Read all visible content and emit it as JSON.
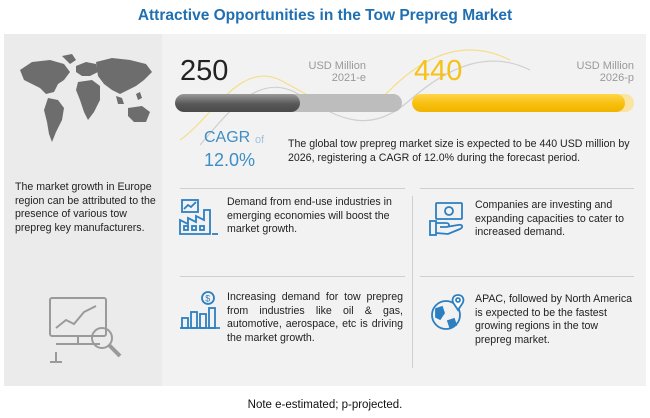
{
  "title": "Attractive Opportunities in the Tow Prepreg Market",
  "left_panel": {
    "map_icon": "world-map-icon",
    "text": "The market growth in Europe region can be attributed to the presence of various tow prepreg key manufacturers.",
    "analytics_icon": "chart-magnifier-icon"
  },
  "metric_2021": {
    "value": "250",
    "unit": "USD Million",
    "year": "2021-e",
    "bar_fill_percent": 55,
    "color": "#5a5a5a"
  },
  "metric_2026": {
    "value": "440",
    "unit": "USD Million",
    "year": "2026-p",
    "bar_fill_percent": 96,
    "color": "#f6c21a"
  },
  "cagr": {
    "label": "CAGR",
    "of": "of",
    "value": "12.0%",
    "color": "#3e8ec4"
  },
  "description": "The global tow prepreg market size is expected to be 440 USD million by 2026, registering a CAGR of 12.0% during the forecast period.",
  "points": [
    {
      "icon": "factory-chart-icon",
      "text": "Demand from end-use industries in emerging economies will boost the market growth."
    },
    {
      "icon": "money-hand-icon",
      "text": "Companies are investing and expanding capacities to cater to increased demand."
    },
    {
      "icon": "dollar-bar-chart-icon",
      "text": "Increasing demand for tow prepreg from industries like oil & gas, automotive, aerospace, etc is driving the market growth."
    },
    {
      "icon": "globe-pin-icon",
      "text": "APAC, followed by North America is expected to be the fastest growing regions in the tow prepreg market."
    }
  ],
  "note": "Note e-estimated; p-projected.",
  "colors": {
    "title": "#1f6fb2",
    "icon_blue": "#2c7fc0",
    "panel": "#f2f2f2"
  }
}
